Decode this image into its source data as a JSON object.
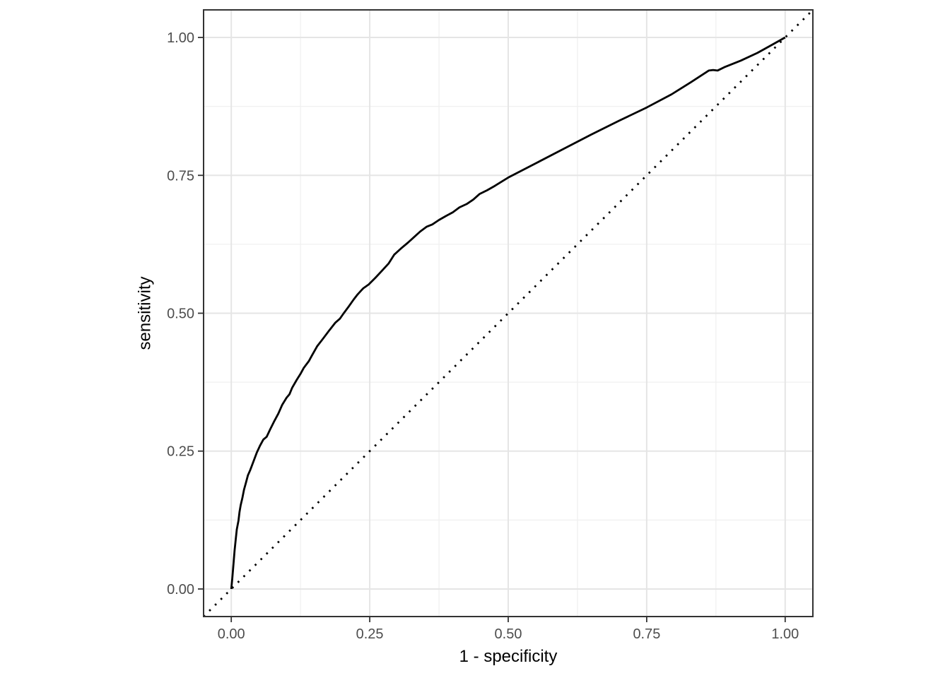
{
  "chart_data": {
    "type": "line",
    "xlabel": "1 - specificity",
    "ylabel": "sensitivity",
    "xlim": [
      -0.05,
      1.05
    ],
    "ylim": [
      -0.05,
      1.05
    ],
    "x_ticks": [
      0,
      0.25,
      0.5,
      0.75,
      1
    ],
    "x_tick_labels": [
      "0.00",
      "0.25",
      "0.50",
      "0.75",
      "1.00"
    ],
    "y_ticks": [
      0,
      0.25,
      0.5,
      0.75,
      1
    ],
    "y_tick_labels": [
      "0.00",
      "0.25",
      "0.50",
      "0.75",
      "1.00"
    ],
    "x_minor_ticks": [
      0.125,
      0.375,
      0.625,
      0.875
    ],
    "y_minor_ticks": [
      0.125,
      0.375,
      0.625,
      0.875
    ],
    "grid": "major+minor",
    "legend": "none",
    "series": [
      {
        "name": "roc-curve",
        "linetype": "solid",
        "color": "#000000",
        "points": [
          [
            0.0,
            0.0
          ],
          [
            0.002,
            0.02
          ],
          [
            0.004,
            0.045
          ],
          [
            0.006,
            0.07
          ],
          [
            0.008,
            0.09
          ],
          [
            0.01,
            0.108
          ],
          [
            0.013,
            0.124
          ],
          [
            0.015,
            0.14
          ],
          [
            0.017,
            0.152
          ],
          [
            0.02,
            0.165
          ],
          [
            0.023,
            0.18
          ],
          [
            0.026,
            0.191
          ],
          [
            0.03,
            0.206
          ],
          [
            0.034,
            0.215
          ],
          [
            0.04,
            0.231
          ],
          [
            0.046,
            0.247
          ],
          [
            0.052,
            0.26
          ],
          [
            0.058,
            0.271
          ],
          [
            0.064,
            0.276
          ],
          [
            0.071,
            0.291
          ],
          [
            0.078,
            0.305
          ],
          [
            0.085,
            0.318
          ],
          [
            0.092,
            0.334
          ],
          [
            0.1,
            0.347
          ],
          [
            0.105,
            0.353
          ],
          [
            0.11,
            0.365
          ],
          [
            0.118,
            0.379
          ],
          [
            0.125,
            0.39
          ],
          [
            0.131,
            0.401
          ],
          [
            0.14,
            0.413
          ],
          [
            0.146,
            0.424
          ],
          [
            0.155,
            0.44
          ],
          [
            0.165,
            0.453
          ],
          [
            0.177,
            0.469
          ],
          [
            0.188,
            0.483
          ],
          [
            0.196,
            0.49
          ],
          [
            0.203,
            0.5
          ],
          [
            0.212,
            0.512
          ],
          [
            0.221,
            0.525
          ],
          [
            0.228,
            0.534
          ],
          [
            0.238,
            0.545
          ],
          [
            0.248,
            0.552
          ],
          [
            0.26,
            0.564
          ],
          [
            0.272,
            0.577
          ],
          [
            0.284,
            0.59
          ],
          [
            0.294,
            0.606
          ],
          [
            0.306,
            0.617
          ],
          [
            0.319,
            0.628
          ],
          [
            0.33,
            0.638
          ],
          [
            0.341,
            0.648
          ],
          [
            0.353,
            0.657
          ],
          [
            0.363,
            0.661
          ],
          [
            0.375,
            0.669
          ],
          [
            0.387,
            0.676
          ],
          [
            0.4,
            0.683
          ],
          [
            0.412,
            0.692
          ],
          [
            0.425,
            0.698
          ],
          [
            0.437,
            0.706
          ],
          [
            0.448,
            0.716
          ],
          [
            0.462,
            0.723
          ],
          [
            0.476,
            0.731
          ],
          [
            0.5,
            0.746
          ],
          [
            0.55,
            0.772
          ],
          [
            0.6,
            0.798
          ],
          [
            0.65,
            0.824
          ],
          [
            0.7,
            0.849
          ],
          [
            0.75,
            0.873
          ],
          [
            0.795,
            0.897
          ],
          [
            0.83,
            0.919
          ],
          [
            0.862,
            0.94
          ],
          [
            0.87,
            0.941
          ],
          [
            0.878,
            0.94
          ],
          [
            0.89,
            0.946
          ],
          [
            0.92,
            0.958
          ],
          [
            0.95,
            0.972
          ],
          [
            0.975,
            0.986
          ],
          [
            1.0,
            1.0
          ]
        ]
      },
      {
        "name": "chance-diagonal",
        "linetype": "dotted",
        "color": "#000000",
        "points": [
          [
            -0.05,
            -0.05
          ],
          [
            1.05,
            1.05
          ]
        ]
      }
    ],
    "colors": {
      "background": "#ffffff",
      "panel_background": "#ffffff",
      "grid_major": "#e5e5e5",
      "grid_minor": "#f0f0f0",
      "panel_border": "#333333",
      "tick": "#333333",
      "tick_label": "#4d4d4d",
      "axis_title": "#000000",
      "curve": "#000000"
    }
  }
}
